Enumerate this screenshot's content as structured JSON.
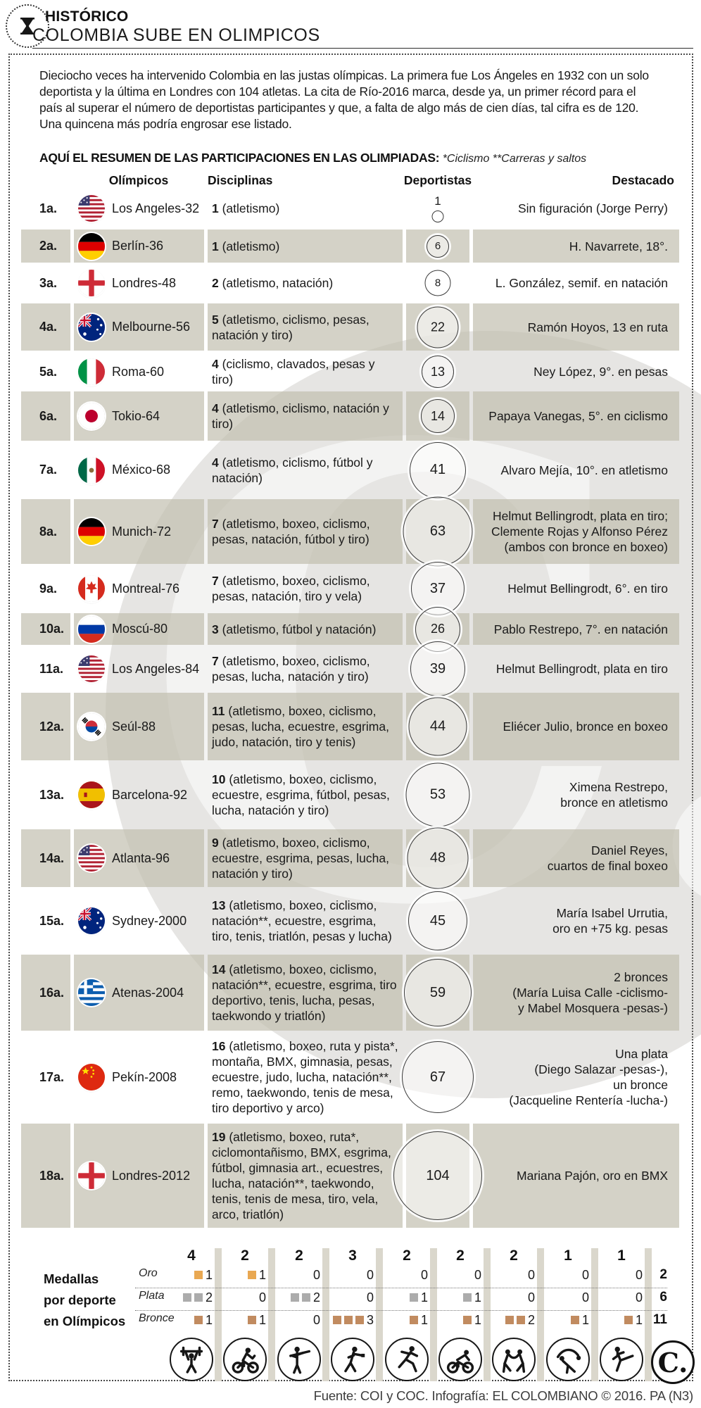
{
  "page": {
    "kicker": "HISTÓRICO",
    "title": "COLOMBIA SUBE EN OLIMPICOS",
    "intro": "Dieciocho veces ha intervenido Colombia en las justas olímpicas. La primera fue Los Ángeles en 1932 con un solo deportista y la última en Londres con 104 atletas. La cita de Río-2016 marca, desde ya, un primer récord para el país al superar el número de deportistas participantes y que, a falta de algo más de cien días, tal cifra es de 120. Una quincena más podría engrosar ese listado.",
    "summary_label": "AQUÍ EL RESUMEN DE LAS PARTICIPACIONES EN LAS OLIMPIADAS:",
    "summary_notes": "*Ciclismo  **Carreras y saltos",
    "source": "Fuente: COI y COC. Infografía: EL COLOMBIANO © 2016. PA (N3)",
    "brand_logo": "C."
  },
  "table": {
    "headers": [
      "Olímpicos",
      "Disciplinas",
      "Deportistas",
      "Destacado"
    ],
    "rows": [
      {
        "ordinal": "1a.",
        "flag": "usa",
        "games": "Los Angeles-32",
        "disc_n": "1",
        "disc_list": "(atletismo)",
        "athletes": 1,
        "highlight": "Sin figuración (Jorge Perry)"
      },
      {
        "ordinal": "2a.",
        "flag": "germany",
        "games": "Berlín-36",
        "disc_n": "1",
        "disc_list": "(atletismo)",
        "athletes": 6,
        "highlight": "H. Navarrete, 18°."
      },
      {
        "ordinal": "3a.",
        "flag": "england",
        "games": "Londres-48",
        "disc_n": "2",
        "disc_list": "(atletismo, natación)",
        "athletes": 8,
        "highlight": "L. González, semif. en natación"
      },
      {
        "ordinal": "4a.",
        "flag": "australia",
        "games": "Melbourne-56",
        "disc_n": "5",
        "disc_list": "(atletismo, ciclismo, pesas, natación y tiro)",
        "athletes": 22,
        "highlight": "Ramón Hoyos, 13 en ruta"
      },
      {
        "ordinal": "5a.",
        "flag": "italy",
        "games": "Roma-60",
        "disc_n": "4",
        "disc_list": "(ciclismo, clavados, pesas y tiro)",
        "athletes": 13,
        "highlight": "Ney López, 9°. en pesas"
      },
      {
        "ordinal": "6a.",
        "flag": "japan",
        "games": "Tokio-64",
        "disc_n": "4",
        "disc_list": "(atletismo, ciclismo, natación y tiro)",
        "athletes": 14,
        "highlight": "Papaya Vanegas, 5°. en ciclismo"
      },
      {
        "ordinal": "7a.",
        "flag": "mexico",
        "games": "México-68",
        "disc_n": "4",
        "disc_list": "(atletismo, ciclismo, fútbol y natación)",
        "athletes": 41,
        "highlight": "Alvaro Mejía, 10°. en atletismo"
      },
      {
        "ordinal": "8a.",
        "flag": "germany",
        "games": "Munich-72",
        "disc_n": "7",
        "disc_list": "(atletismo, boxeo, ciclismo, pesas, natación, fútbol y tiro)",
        "athletes": 63,
        "highlight": "Helmut Bellingrodt, plata en tiro;\nClemente Rojas y Alfonso Pérez\n(ambos con bronce en boxeo)"
      },
      {
        "ordinal": "9a.",
        "flag": "canada",
        "games": "Montreal-76",
        "disc_n": "7",
        "disc_list": "(atletismo, boxeo, ciclismo, pesas, natación, tiro y vela)",
        "athletes": 37,
        "highlight": "Helmut Bellingrodt, 6°. en tiro"
      },
      {
        "ordinal": "10a.",
        "flag": "russia",
        "games": "Moscú-80",
        "disc_n": "3",
        "disc_list": "(atletismo, fútbol y natación)",
        "athletes": 26,
        "highlight": "Pablo Restrepo, 7°. en natación"
      },
      {
        "ordinal": "11a.",
        "flag": "usa",
        "games": "Los Angeles-84",
        "disc_n": "7",
        "disc_list": "(atletismo, boxeo, ciclismo, pesas, lucha, natación y tiro)",
        "athletes": 39,
        "highlight": "Helmut Bellingrodt, plata en tiro"
      },
      {
        "ordinal": "12a.",
        "flag": "southkorea",
        "games": "Seúl-88",
        "disc_n": "11",
        "disc_list": "(atletismo, boxeo, ciclismo, pesas, lucha, ecuestre, esgrima, judo, natación, tiro y tenis)",
        "athletes": 44,
        "highlight": "Eliécer Julio, bronce en boxeo"
      },
      {
        "ordinal": "13a.",
        "flag": "spain",
        "games": "Barcelona-92",
        "disc_n": "10",
        "disc_list": "(atletismo, boxeo, ciclismo, ecuestre, esgrima, fútbol, pesas, lucha, natación y tiro)",
        "athletes": 53,
        "highlight": "Ximena Restrepo,\nbronce en atletismo"
      },
      {
        "ordinal": "14a.",
        "flag": "usa",
        "games": "Atlanta-96",
        "disc_n": "9",
        "disc_list": "(atletismo, boxeo, ciclismo, ecuestre, esgrima, pesas, lucha, natación y tiro)",
        "athletes": 48,
        "highlight": "Daniel Reyes,\ncuartos de final boxeo"
      },
      {
        "ordinal": "15a.",
        "flag": "australia",
        "games": "Sydney-2000",
        "disc_n": "13",
        "disc_list": "(atletismo, boxeo, ciclismo, natación**, ecuestre, esgrima, tiro, tenis, triatlón, pesas y lucha)",
        "athletes": 45,
        "highlight": "María Isabel Urrutia,\noro en +75 kg. pesas"
      },
      {
        "ordinal": "16a.",
        "flag": "greece",
        "games": "Atenas-2004",
        "disc_n": "14",
        "disc_list": "(atletismo, boxeo, ciclismo, natación**, ecuestre, esgrima, tiro deportivo, tenis, lucha, pesas, taekwondo y triatlón)",
        "athletes": 59,
        "highlight": "2 bronces\n(María Luisa Calle -ciclismo-\ny Mabel Mosquera -pesas-)"
      },
      {
        "ordinal": "17a.",
        "flag": "china",
        "games": "Pekín-2008",
        "disc_n": "16",
        "disc_list": "(atletismo, boxeo, ruta y pista*, montaña, BMX, gimnasia, pesas, ecuestre, judo, lucha, natación**, remo, taekwondo, tenis de mesa, tiro deportivo y arco)",
        "athletes": 67,
        "highlight": "Una plata\n(Diego Salazar -pesas-),\nun bronce\n(Jacqueline Rentería -lucha-)"
      },
      {
        "ordinal": "18a.",
        "flag": "england",
        "games": "Londres-2012",
        "disc_n": "19",
        "disc_list": "(atletismo, boxeo, ruta*, ciclomontañismo, BMX, esgrima, fútbol, gimnasia art., ecuestres, lucha, natación**, taekwondo, tenis, tenis de mesa, tiro, vela, arco, triatlón)",
        "athletes": 104,
        "highlight": "Mariana Pajón, oro en BMX"
      }
    ]
  },
  "medals": {
    "label_lines": [
      "Medallas",
      "por deporte",
      "en Olímpicos"
    ],
    "row_labels": [
      "Oro",
      "Plata",
      "Bronce"
    ],
    "row_totals": [
      2,
      6,
      11
    ],
    "colors": {
      "oro": "#E9A852",
      "plata": "#ACACAC",
      "bronce": "#C18B60"
    },
    "sports": [
      {
        "icon": "pesas",
        "total": 4,
        "oro": 1,
        "plata": 2,
        "bronce": 1
      },
      {
        "icon": "bmx",
        "total": 2,
        "oro": 1,
        "plata": 0,
        "bronce": 1
      },
      {
        "icon": "tiro",
        "total": 2,
        "oro": 0,
        "plata": 2,
        "bronce": 0
      },
      {
        "icon": "boxeo",
        "total": 3,
        "oro": 0,
        "plata": 0,
        "bronce": 3
      },
      {
        "icon": "atletismo",
        "total": 2,
        "oro": 0,
        "plata": 1,
        "bronce": 1
      },
      {
        "icon": "ciclismo",
        "total": 2,
        "oro": 0,
        "plata": 1,
        "bronce": 1
      },
      {
        "icon": "lucha",
        "total": 2,
        "oro": 0,
        "plata": 0,
        "bronce": 2
      },
      {
        "icon": "judo",
        "total": 1,
        "oro": 0,
        "plata": 0,
        "bronce": 1
      },
      {
        "icon": "taekwondo",
        "total": 1,
        "oro": 0,
        "plata": 0,
        "bronce": 1
      }
    ]
  },
  "chart_data": [
    {
      "type": "bar",
      "title": "Deportistas de Colombia por participación olímpica (círculos proporcionales)",
      "categories": [
        "Los Angeles-32",
        "Berlín-36",
        "Londres-48",
        "Melbourne-56",
        "Roma-60",
        "Tokio-64",
        "México-68",
        "Munich-72",
        "Montreal-76",
        "Moscú-80",
        "Los Angeles-84",
        "Seúl-88",
        "Barcelona-92",
        "Atlanta-96",
        "Sydney-2000",
        "Atenas-2004",
        "Pekín-2008",
        "Londres-2012"
      ],
      "values": [
        1,
        6,
        8,
        22,
        13,
        14,
        41,
        63,
        37,
        26,
        39,
        44,
        53,
        48,
        45,
        59,
        67,
        104
      ],
      "xlabel": "Olímpicos",
      "ylabel": "Deportistas"
    },
    {
      "type": "table",
      "title": "Medallas por deporte en Olímpicos",
      "categories": [
        "pesas",
        "bmx",
        "tiro",
        "boxeo",
        "atletismo",
        "ciclismo",
        "lucha",
        "judo",
        "taekwondo"
      ],
      "totals_per_sport": [
        4,
        2,
        2,
        3,
        2,
        2,
        2,
        1,
        1
      ],
      "series": [
        {
          "name": "Oro",
          "values": [
            1,
            1,
            0,
            0,
            0,
            0,
            0,
            0,
            0
          ],
          "total": 2
        },
        {
          "name": "Plata",
          "values": [
            2,
            0,
            2,
            0,
            1,
            1,
            0,
            0,
            0
          ],
          "total": 6
        },
        {
          "name": "Bronce",
          "values": [
            1,
            1,
            0,
            3,
            1,
            1,
            2,
            1,
            1
          ],
          "total": 11
        }
      ]
    }
  ]
}
